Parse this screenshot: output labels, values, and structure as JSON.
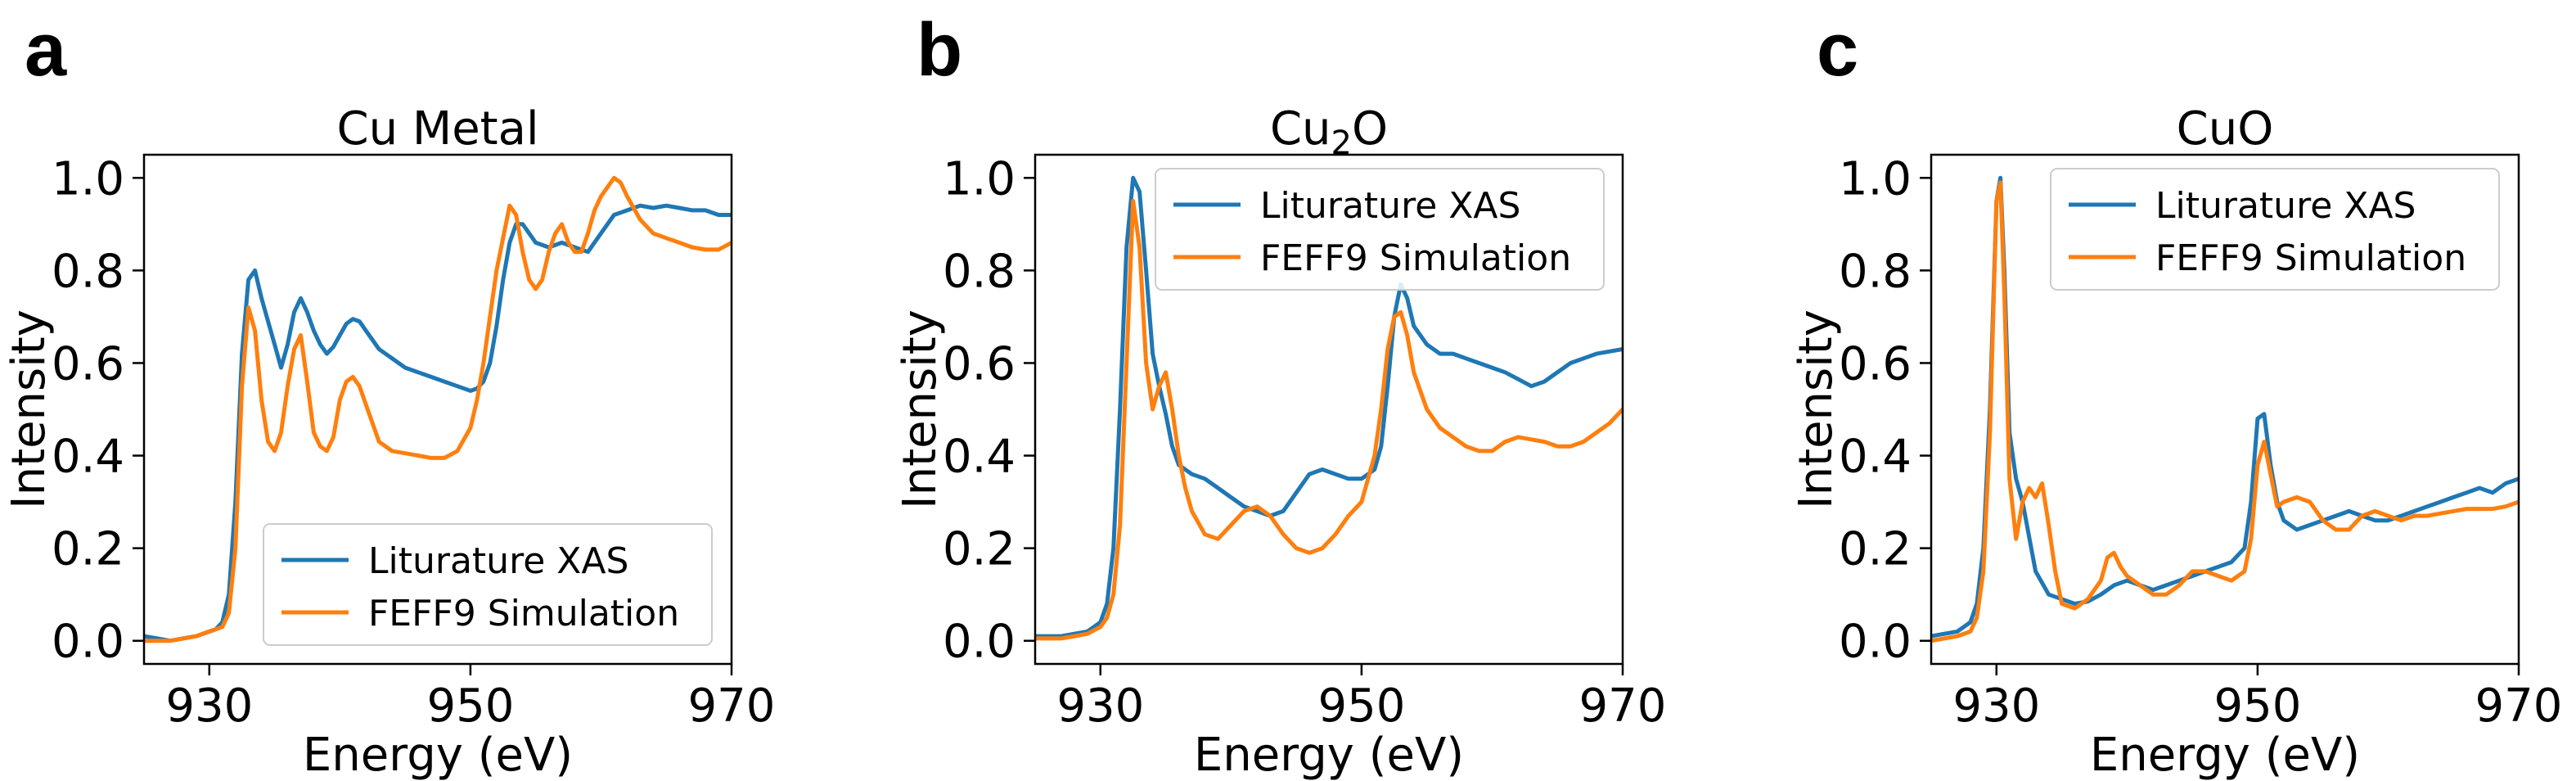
{
  "chart_data": [
    {
      "type": "line",
      "panel_label": "a",
      "title": "Cu Metal",
      "title_sub": "",
      "title_tail": "",
      "xlabel": "Energy (eV)",
      "ylabel": "Intensity",
      "xlim": [
        925,
        970
      ],
      "ylim": [
        -0.05,
        1.05
      ],
      "xticks": [
        930,
        950,
        970
      ],
      "yticks": [
        0.0,
        0.2,
        0.4,
        0.6,
        0.8,
        1.0
      ],
      "xtick_labels": [
        "930",
        "950",
        "970"
      ],
      "ytick_labels": [
        "0.0",
        "0.2",
        "0.4",
        "0.6",
        "0.8",
        "1.0"
      ],
      "legend_position": "lower-right",
      "series": [
        {
          "name": "Liturature XAS",
          "color": "#1f77b4",
          "x": [
            925,
            926,
            927,
            928,
            929,
            930,
            930.5,
            931,
            931.5,
            932,
            932.5,
            933,
            933.5,
            934,
            934.5,
            935,
            935.5,
            936,
            936.5,
            937,
            937.5,
            938,
            938.5,
            939,
            939.5,
            940,
            940.5,
            941,
            941.5,
            942,
            943,
            944,
            945,
            946,
            947,
            948,
            949,
            950,
            950.5,
            951,
            951.5,
            952,
            952.5,
            953,
            953.5,
            954,
            954.5,
            955,
            956,
            957,
            958,
            959,
            960,
            961,
            962,
            963,
            964,
            965,
            966,
            967,
            968,
            969,
            970
          ],
          "y": [
            0.01,
            0.005,
            0.0,
            0.005,
            0.01,
            0.02,
            0.025,
            0.04,
            0.1,
            0.3,
            0.62,
            0.78,
            0.8,
            0.74,
            0.69,
            0.64,
            0.59,
            0.64,
            0.71,
            0.74,
            0.71,
            0.67,
            0.64,
            0.62,
            0.635,
            0.66,
            0.685,
            0.695,
            0.69,
            0.67,
            0.63,
            0.61,
            0.59,
            0.58,
            0.57,
            0.56,
            0.55,
            0.54,
            0.545,
            0.56,
            0.6,
            0.68,
            0.78,
            0.86,
            0.9,
            0.9,
            0.88,
            0.86,
            0.85,
            0.86,
            0.85,
            0.84,
            0.88,
            0.92,
            0.93,
            0.94,
            0.935,
            0.94,
            0.935,
            0.93,
            0.93,
            0.92,
            0.92
          ]
        },
        {
          "name": "FEFF9 Simulation",
          "color": "#ff7f0e",
          "x": [
            925,
            926,
            927,
            928,
            929,
            930,
            930.5,
            931,
            931.5,
            932,
            932.5,
            933,
            933.5,
            934,
            934.5,
            935,
            935.5,
            936,
            936.5,
            937,
            937.5,
            938,
            938.5,
            939,
            939.5,
            940,
            940.5,
            941,
            941.5,
            942,
            943,
            944,
            945,
            946,
            947,
            948,
            949,
            950,
            950.5,
            951,
            951.5,
            952,
            952.5,
            953,
            953.5,
            954,
            954.5,
            955,
            955.5,
            956,
            956.5,
            957,
            957.5,
            958,
            958.5,
            959,
            959.5,
            960,
            960.5,
            961,
            961.5,
            962,
            963,
            964,
            965,
            966,
            967,
            968,
            969,
            970
          ],
          "y": [
            0.0,
            0.0,
            0.0,
            0.005,
            0.01,
            0.02,
            0.025,
            0.03,
            0.06,
            0.2,
            0.55,
            0.72,
            0.67,
            0.52,
            0.43,
            0.41,
            0.45,
            0.55,
            0.63,
            0.66,
            0.56,
            0.45,
            0.42,
            0.41,
            0.44,
            0.52,
            0.56,
            0.57,
            0.55,
            0.51,
            0.43,
            0.41,
            0.405,
            0.4,
            0.395,
            0.395,
            0.41,
            0.46,
            0.52,
            0.6,
            0.7,
            0.8,
            0.87,
            0.94,
            0.92,
            0.84,
            0.78,
            0.76,
            0.78,
            0.84,
            0.88,
            0.9,
            0.86,
            0.84,
            0.84,
            0.88,
            0.93,
            0.96,
            0.98,
            1.0,
            0.99,
            0.96,
            0.91,
            0.88,
            0.87,
            0.86,
            0.85,
            0.845,
            0.845,
            0.86
          ]
        }
      ]
    },
    {
      "type": "line",
      "panel_label": "b",
      "title": "Cu",
      "title_sub": "2",
      "title_tail": "O",
      "xlabel": "Energy (eV)",
      "ylabel": "Intensity",
      "xlim": [
        925,
        970
      ],
      "ylim": [
        -0.05,
        1.05
      ],
      "xticks": [
        930,
        950,
        970
      ],
      "yticks": [
        0.0,
        0.2,
        0.4,
        0.6,
        0.8,
        1.0
      ],
      "xtick_labels": [
        "930",
        "950",
        "970"
      ],
      "ytick_labels": [
        "0.0",
        "0.2",
        "0.4",
        "0.6",
        "0.8",
        "1.0"
      ],
      "legend_position": "top-right",
      "series": [
        {
          "name": "Liturature XAS",
          "color": "#1f77b4",
          "x": [
            925,
            926,
            927,
            928,
            929,
            930,
            930.5,
            931,
            931.5,
            932,
            932.5,
            933,
            933.5,
            934,
            934.5,
            935,
            935.5,
            936,
            936.5,
            937,
            938,
            939,
            940,
            941,
            942,
            943,
            944,
            945,
            946,
            947,
            948,
            949,
            950,
            951,
            951.5,
            952,
            952.5,
            953,
            953.5,
            954,
            955,
            956,
            957,
            958,
            959,
            960,
            961,
            962,
            963,
            964,
            965,
            966,
            967,
            968,
            969,
            970
          ],
          "y": [
            0.01,
            0.01,
            0.01,
            0.015,
            0.02,
            0.04,
            0.08,
            0.2,
            0.5,
            0.85,
            1.0,
            0.97,
            0.8,
            0.62,
            0.55,
            0.49,
            0.42,
            0.38,
            0.37,
            0.36,
            0.35,
            0.33,
            0.31,
            0.29,
            0.28,
            0.27,
            0.28,
            0.32,
            0.36,
            0.37,
            0.36,
            0.35,
            0.35,
            0.37,
            0.42,
            0.55,
            0.7,
            0.77,
            0.74,
            0.68,
            0.64,
            0.62,
            0.62,
            0.61,
            0.6,
            0.59,
            0.58,
            0.565,
            0.55,
            0.56,
            0.58,
            0.6,
            0.61,
            0.62,
            0.625,
            0.63
          ]
        },
        {
          "name": "FEFF9 Simulation",
          "color": "#ff7f0e",
          "x": [
            925,
            926,
            927,
            928,
            929,
            930,
            930.5,
            931,
            931.5,
            932,
            932.5,
            933,
            933.5,
            934,
            934.5,
            935,
            935.5,
            936,
            936.5,
            937,
            938,
            939,
            940,
            941,
            942,
            943,
            944,
            945,
            946,
            947,
            948,
            949,
            950,
            951,
            951.5,
            952,
            952.5,
            953,
            953.5,
            954,
            955,
            956,
            957,
            958,
            959,
            960,
            961,
            962,
            963,
            964,
            965,
            966,
            967,
            968,
            969,
            970
          ],
          "y": [
            0.005,
            0.005,
            0.005,
            0.01,
            0.015,
            0.03,
            0.05,
            0.1,
            0.25,
            0.6,
            0.95,
            0.85,
            0.6,
            0.5,
            0.55,
            0.58,
            0.5,
            0.4,
            0.33,
            0.28,
            0.23,
            0.22,
            0.25,
            0.28,
            0.29,
            0.27,
            0.23,
            0.2,
            0.19,
            0.2,
            0.23,
            0.27,
            0.3,
            0.4,
            0.5,
            0.63,
            0.7,
            0.71,
            0.66,
            0.58,
            0.5,
            0.46,
            0.44,
            0.42,
            0.41,
            0.41,
            0.43,
            0.44,
            0.435,
            0.43,
            0.42,
            0.42,
            0.43,
            0.45,
            0.47,
            0.5
          ]
        }
      ]
    },
    {
      "type": "line",
      "panel_label": "c",
      "title": "CuO",
      "title_sub": "",
      "title_tail": "",
      "xlabel": "Energy (eV)",
      "ylabel": "Intensity",
      "xlim": [
        925,
        970
      ],
      "ylim": [
        -0.05,
        1.05
      ],
      "xticks": [
        930,
        950,
        970
      ],
      "yticks": [
        0.0,
        0.2,
        0.4,
        0.6,
        0.8,
        1.0
      ],
      "xtick_labels": [
        "930",
        "950",
        "970"
      ],
      "ytick_labels": [
        "0.0",
        "0.2",
        "0.4",
        "0.6",
        "0.8",
        "1.0"
      ],
      "legend_position": "top-right",
      "series": [
        {
          "name": "Liturature XAS",
          "color": "#1f77b4",
          "x": [
            925,
            926,
            927,
            928,
            928.5,
            929,
            929.5,
            930,
            930.3,
            930.6,
            931,
            931.5,
            932,
            933,
            934,
            935,
            936,
            937,
            938,
            939,
            940,
            941,
            942,
            943,
            944,
            945,
            946,
            947,
            948,
            949,
            949.5,
            950,
            950.5,
            951,
            951.5,
            952,
            953,
            954,
            955,
            956,
            957,
            958,
            959,
            960,
            961,
            962,
            963,
            964,
            965,
            966,
            967,
            968,
            969,
            970
          ],
          "y": [
            0.01,
            0.015,
            0.02,
            0.04,
            0.08,
            0.2,
            0.5,
            0.95,
            1.0,
            0.8,
            0.45,
            0.35,
            0.3,
            0.15,
            0.1,
            0.09,
            0.08,
            0.085,
            0.1,
            0.12,
            0.13,
            0.12,
            0.11,
            0.12,
            0.13,
            0.14,
            0.15,
            0.16,
            0.17,
            0.2,
            0.3,
            0.48,
            0.49,
            0.38,
            0.3,
            0.26,
            0.24,
            0.25,
            0.26,
            0.27,
            0.28,
            0.27,
            0.26,
            0.26,
            0.27,
            0.28,
            0.29,
            0.3,
            0.31,
            0.32,
            0.33,
            0.32,
            0.34,
            0.35
          ]
        },
        {
          "name": "FEFF9 Simulation",
          "color": "#ff7f0e",
          "x": [
            925,
            926,
            927,
            928,
            928.5,
            929,
            929.5,
            930,
            930.3,
            930.6,
            931,
            931.5,
            932,
            932.5,
            933,
            933.5,
            934,
            934.5,
            935,
            936,
            937,
            938,
            938.5,
            939,
            939.5,
            940,
            941,
            942,
            943,
            944,
            945,
            946,
            947,
            948,
            949,
            949.5,
            950,
            950.5,
            951,
            951.5,
            952,
            953,
            954,
            955,
            956,
            957,
            958,
            959,
            960,
            961,
            962,
            963,
            964,
            965,
            966,
            967,
            968,
            969,
            970
          ],
          "y": [
            0.0,
            0.005,
            0.01,
            0.02,
            0.05,
            0.15,
            0.45,
            0.95,
            0.99,
            0.75,
            0.35,
            0.22,
            0.3,
            0.33,
            0.31,
            0.34,
            0.25,
            0.15,
            0.08,
            0.07,
            0.09,
            0.13,
            0.18,
            0.19,
            0.16,
            0.14,
            0.12,
            0.1,
            0.1,
            0.12,
            0.15,
            0.15,
            0.14,
            0.13,
            0.15,
            0.22,
            0.38,
            0.43,
            0.36,
            0.29,
            0.3,
            0.31,
            0.3,
            0.26,
            0.24,
            0.24,
            0.27,
            0.28,
            0.27,
            0.26,
            0.27,
            0.27,
            0.275,
            0.28,
            0.285,
            0.285,
            0.285,
            0.29,
            0.3
          ]
        }
      ]
    }
  ]
}
